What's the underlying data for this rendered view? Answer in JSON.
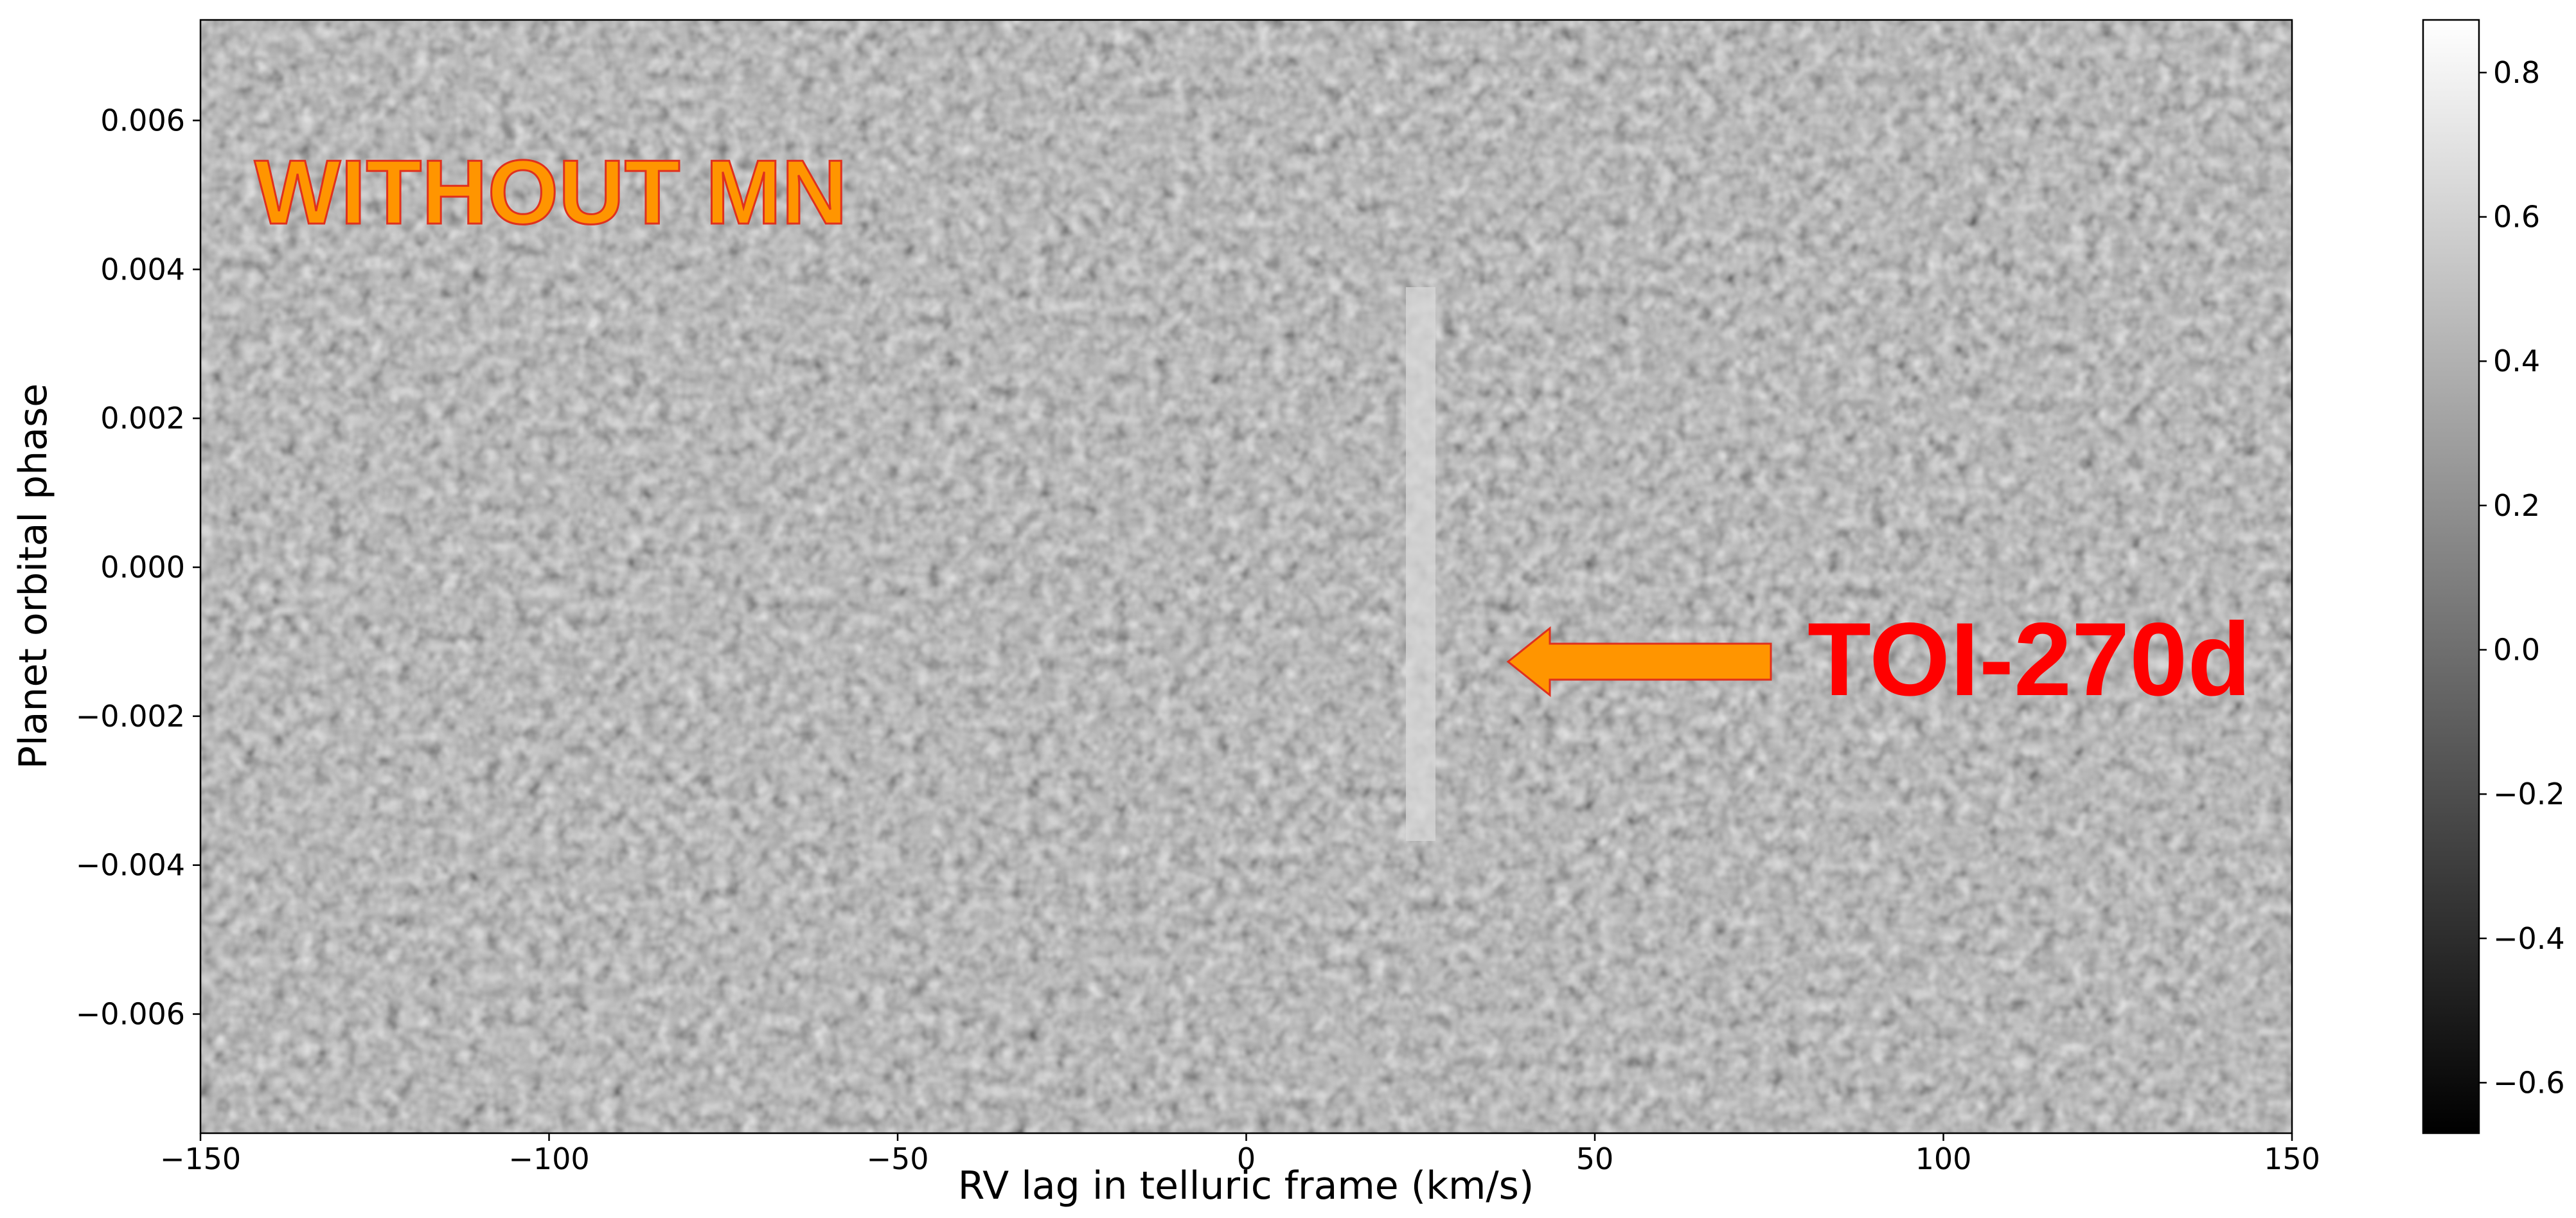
{
  "chart_data": {
    "type": "heatmap",
    "xlabel": "RV lag in telluric frame (km/s)",
    "ylabel": "Planet orbital phase",
    "xlim": [
      -150,
      150
    ],
    "xticks": [
      {
        "value": -150,
        "label": "−150"
      },
      {
        "value": -100,
        "label": "−100"
      },
      {
        "value": -50,
        "label": "−50"
      },
      0,
      50,
      100,
      150
    ],
    "ylim": [
      -0.0076,
      0.00735
    ],
    "yticks": [
      {
        "value": -0.006,
        "label": "−0.006"
      },
      {
        "value": -0.004,
        "label": "−0.004"
      },
      {
        "value": -0.002,
        "label": "−0.002"
      },
      {
        "value": 0,
        "label": "0.000"
      },
      0.002,
      0.004,
      0.006
    ],
    "clim": [
      -0.67,
      0.873
    ],
    "cticks": [
      {
        "value": -0.6,
        "label": "−0.6"
      },
      {
        "value": -0.4,
        "label": "−0.4"
      },
      {
        "value": -0.2,
        "label": "−0.2"
      },
      {
        "value": 0,
        "label": "0.0"
      },
      0.2,
      0.4,
      0.6,
      0.8
    ],
    "colormap": "gray",
    "annotations": [
      "WITHOUT MN",
      "TOI-270d"
    ]
  }
}
